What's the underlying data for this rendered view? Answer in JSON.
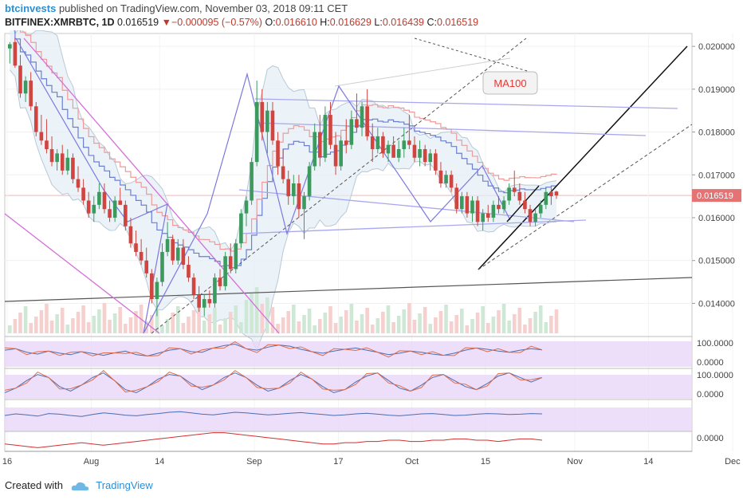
{
  "header": {
    "author": "btcinvests",
    "published_text": "published on TradingView.com, November 03, 2018 09:11 CET"
  },
  "quote": {
    "symbol": "BITFINEX:XMRBTC, 1D",
    "last": "0.016519",
    "down_arrow": "▼",
    "change": "−0.000095 (−0.57%)",
    "o_label": "O:",
    "o_value": "0.016610",
    "h_label": "H:",
    "h_value": "0.016629",
    "l_label": "L:",
    "l_value": "0.016439",
    "c_label": "C:",
    "c_value": "0.016519"
  },
  "footer": {
    "created_with": "Created with",
    "brand": "TradingView"
  },
  "colors": {
    "up": "#3c9a5f",
    "down": "#d0453f",
    "accent": "#2a8fd6",
    "ma100": "#e53935",
    "price_tag": "#e57373"
  },
  "chart_data": {
    "type": "candlestick",
    "title": "BITFINEX:XMRBTC, 1D",
    "ylim": [
      0.0133,
      0.0203
    ],
    "y_ticks": [
      "0.020000",
      "0.019000",
      "0.018000",
      "0.017000",
      "0.016000",
      "0.015000",
      "0.014000"
    ],
    "y_tick_values": [
      0.02,
      0.019,
      0.018,
      0.017,
      0.016,
      0.015,
      0.014
    ],
    "last_price_label": "0.016519",
    "last_price_value": 0.016519,
    "x_ticks": [
      "16",
      "Aug",
      "14",
      "Sep",
      "17",
      "Oct",
      "15",
      "Nov",
      "14",
      "Dec"
    ],
    "x_tick_days": [
      0,
      16,
      29,
      47,
      63,
      77,
      91,
      108,
      122,
      138
    ],
    "total_days": 141,
    "annotation": "MA100",
    "candles": [
      [
        0.01995,
        0.0201,
        0.0196,
        0.02005
      ],
      [
        0.0201,
        0.0202,
        0.0195,
        0.01955
      ],
      [
        0.01955,
        0.0198,
        0.0188,
        0.0189
      ],
      [
        0.0189,
        0.0193,
        0.0187,
        0.0192
      ],
      [
        0.0192,
        0.0194,
        0.0185,
        0.0186
      ],
      [
        0.0186,
        0.0187,
        0.0179,
        0.018
      ],
      [
        0.018,
        0.0184,
        0.0177,
        0.0178
      ],
      [
        0.0178,
        0.0183,
        0.0175,
        0.0176
      ],
      [
        0.0176,
        0.0179,
        0.0172,
        0.0173
      ],
      [
        0.0173,
        0.0176,
        0.0171,
        0.0175
      ],
      [
        0.0175,
        0.0177,
        0.017,
        0.0171
      ],
      [
        0.0171,
        0.0176,
        0.017,
        0.0174
      ],
      [
        0.0174,
        0.0175,
        0.0168,
        0.0169
      ],
      [
        0.0169,
        0.0172,
        0.0166,
        0.0167
      ],
      [
        0.0167,
        0.0169,
        0.0163,
        0.0164
      ],
      [
        0.0164,
        0.0166,
        0.016,
        0.0161
      ],
      [
        0.0161,
        0.0165,
        0.0159,
        0.0163
      ],
      [
        0.0163,
        0.0168,
        0.0162,
        0.0166
      ],
      [
        0.0166,
        0.0168,
        0.0161,
        0.0162
      ],
      [
        0.0162,
        0.0164,
        0.0159,
        0.016
      ],
      [
        0.016,
        0.0165,
        0.0159,
        0.0164
      ],
      [
        0.0164,
        0.0167,
        0.0163,
        0.0163
      ],
      [
        0.0163,
        0.0164,
        0.0157,
        0.0158
      ],
      [
        0.0158,
        0.016,
        0.0153,
        0.0154
      ],
      [
        0.0154,
        0.0157,
        0.0151,
        0.0152
      ],
      [
        0.0152,
        0.0155,
        0.0149,
        0.015
      ],
      [
        0.015,
        0.0153,
        0.0146,
        0.0147
      ],
      [
        0.0147,
        0.0148,
        0.014,
        0.0141
      ],
      [
        0.0141,
        0.0146,
        0.0137,
        0.0145
      ],
      [
        0.0145,
        0.0154,
        0.0144,
        0.0152
      ],
      [
        0.0152,
        0.0159,
        0.0151,
        0.0155
      ],
      [
        0.0155,
        0.0156,
        0.0149,
        0.015
      ],
      [
        0.015,
        0.0155,
        0.0149,
        0.0153
      ],
      [
        0.0153,
        0.0155,
        0.0148,
        0.0149
      ],
      [
        0.0149,
        0.0151,
        0.0145,
        0.0146
      ],
      [
        0.0146,
        0.0147,
        0.0141,
        0.0142
      ],
      [
        0.0142,
        0.0144,
        0.0138,
        0.0139
      ],
      [
        0.0139,
        0.0142,
        0.0137,
        0.0141
      ],
      [
        0.0141,
        0.0143,
        0.0139,
        0.014
      ],
      [
        0.014,
        0.0147,
        0.0139,
        0.0146
      ],
      [
        0.0146,
        0.0148,
        0.0143,
        0.0144
      ],
      [
        0.0144,
        0.0152,
        0.0143,
        0.0151
      ],
      [
        0.0151,
        0.0154,
        0.0147,
        0.0148
      ],
      [
        0.0148,
        0.0155,
        0.0147,
        0.0154
      ],
      [
        0.0154,
        0.0162,
        0.0153,
        0.0161
      ],
      [
        0.0161,
        0.0165,
        0.0158,
        0.0164
      ],
      [
        0.0164,
        0.0174,
        0.0163,
        0.0173
      ],
      [
        0.0173,
        0.0192,
        0.0172,
        0.0187
      ],
      [
        0.0187,
        0.019,
        0.0178,
        0.018
      ],
      [
        0.018,
        0.0187,
        0.0175,
        0.0185
      ],
      [
        0.0185,
        0.0187,
        0.0177,
        0.0178
      ],
      [
        0.0178,
        0.018,
        0.017,
        0.0172
      ],
      [
        0.0172,
        0.0176,
        0.0168,
        0.0169
      ],
      [
        0.0169,
        0.0171,
        0.0163,
        0.0165
      ],
      [
        0.0165,
        0.017,
        0.0163,
        0.0168
      ],
      [
        0.0168,
        0.017,
        0.016,
        0.0162
      ],
      [
        0.0162,
        0.0166,
        0.0155,
        0.0165
      ],
      [
        0.0165,
        0.0173,
        0.0164,
        0.0172
      ],
      [
        0.0172,
        0.0182,
        0.0171,
        0.018
      ],
      [
        0.018,
        0.0184,
        0.0172,
        0.0174
      ],
      [
        0.0174,
        0.0186,
        0.0173,
        0.0184
      ],
      [
        0.0184,
        0.0187,
        0.0176,
        0.0177
      ],
      [
        0.0177,
        0.018,
        0.017,
        0.0172
      ],
      [
        0.0172,
        0.0179,
        0.0171,
        0.0178
      ],
      [
        0.0178,
        0.0183,
        0.0175,
        0.0177
      ],
      [
        0.0177,
        0.0185,
        0.0176,
        0.0183
      ],
      [
        0.0183,
        0.0189,
        0.018,
        0.0181
      ],
      [
        0.0181,
        0.0187,
        0.0179,
        0.0186
      ],
      [
        0.0186,
        0.019,
        0.0178,
        0.0179
      ],
      [
        0.0179,
        0.0182,
        0.0173,
        0.0176
      ],
      [
        0.0176,
        0.0181,
        0.0175,
        0.0179
      ],
      [
        0.0179,
        0.018,
        0.0174,
        0.0175
      ],
      [
        0.0175,
        0.0178,
        0.0173,
        0.0177
      ],
      [
        0.0177,
        0.0179,
        0.0174,
        0.0174
      ],
      [
        0.0174,
        0.0178,
        0.0173,
        0.0176
      ],
      [
        0.0176,
        0.0181,
        0.0174,
        0.0178
      ],
      [
        0.0178,
        0.0184,
        0.0176,
        0.0177
      ],
      [
        0.0177,
        0.0179,
        0.0173,
        0.0174
      ],
      [
        0.0174,
        0.0178,
        0.0172,
        0.0176
      ],
      [
        0.0176,
        0.0177,
        0.0172,
        0.0173
      ],
      [
        0.0173,
        0.0176,
        0.0171,
        0.0175
      ],
      [
        0.0175,
        0.0176,
        0.017,
        0.0171
      ],
      [
        0.0171,
        0.0173,
        0.0167,
        0.0168
      ],
      [
        0.0168,
        0.0171,
        0.0167,
        0.017
      ],
      [
        0.017,
        0.0171,
        0.0166,
        0.0167
      ],
      [
        0.0167,
        0.0168,
        0.0161,
        0.0162
      ],
      [
        0.0162,
        0.0166,
        0.0161,
        0.0165
      ],
      [
        0.0165,
        0.0166,
        0.016,
        0.0161
      ],
      [
        0.0161,
        0.0165,
        0.0159,
        0.0164
      ],
      [
        0.0164,
        0.0165,
        0.0158,
        0.0159
      ],
      [
        0.0159,
        0.0162,
        0.0157,
        0.0161
      ],
      [
        0.0161,
        0.0163,
        0.0159,
        0.016
      ],
      [
        0.016,
        0.0164,
        0.0159,
        0.0163
      ],
      [
        0.0163,
        0.0165,
        0.0161,
        0.0162
      ],
      [
        0.0162,
        0.0165,
        0.0161,
        0.0164
      ],
      [
        0.0164,
        0.0168,
        0.0163,
        0.0167
      ],
      [
        0.0167,
        0.0171,
        0.0165,
        0.0166
      ],
      [
        0.0166,
        0.0168,
        0.0163,
        0.0164
      ],
      [
        0.0164,
        0.0166,
        0.0161,
        0.0162
      ],
      [
        0.0162,
        0.0163,
        0.0158,
        0.0159
      ],
      [
        0.0159,
        0.0162,
        0.0158,
        0.0161
      ],
      [
        0.0161,
        0.0164,
        0.016,
        0.0163
      ],
      [
        0.0163,
        0.0167,
        0.0162,
        0.0166
      ],
      [
        0.0166,
        0.0167,
        0.0163,
        0.0165
      ],
      [
        0.01661,
        0.016629,
        0.016439,
        0.016519
      ]
    ],
    "indicators": [
      {
        "name": "RSI pane",
        "values": [
          55,
          60,
          48,
          42,
          52,
          45,
          40,
          50,
          44,
          38,
          46,
          52,
          40,
          36,
          45,
          55,
          60,
          50,
          48,
          62,
          70,
          75,
          60,
          55,
          65,
          72,
          68,
          58,
          50,
          45,
          52,
          58,
          62,
          55,
          48,
          40,
          45,
          52,
          48,
          42,
          38,
          45,
          55,
          62,
          58,
          52,
          48,
          55,
          60,
          56
        ]
      },
      {
        "name": "Stochastic pane",
        "values": [
          20,
          35,
          60,
          80,
          70,
          40,
          25,
          45,
          70,
          85,
          60,
          30,
          20,
          40,
          65,
          80,
          75,
          50,
          30,
          45,
          70,
          85,
          70,
          45,
          25,
          35,
          60,
          80,
          65,
          40,
          20,
          30,
          55,
          75,
          85,
          60,
          35,
          25,
          45,
          70,
          80,
          60,
          40,
          30,
          50,
          75,
          85,
          70,
          55,
          70
        ]
      },
      {
        "name": "Momentum pane",
        "values": [
          50,
          55,
          52,
          48,
          56,
          54,
          50,
          47,
          53,
          58,
          55,
          51,
          49,
          53,
          56,
          60,
          62,
          58,
          54,
          52,
          56,
          60,
          58,
          55,
          52,
          54,
          57,
          59,
          56,
          53,
          50,
          52,
          55,
          57,
          54,
          51,
          49,
          52,
          55,
          56,
          53,
          50,
          51,
          54,
          56,
          55,
          53,
          54,
          56,
          55
        ]
      },
      {
        "name": "MACD pane",
        "values": [
          -3,
          -4,
          -5,
          -6,
          -5,
          -4,
          -3,
          -2,
          -3,
          -4,
          -3,
          -2,
          -1,
          0,
          1,
          2,
          3,
          4,
          5,
          6,
          6,
          5,
          4,
          3,
          2,
          1,
          0,
          -1,
          -2,
          -3,
          -3,
          -2,
          -2,
          -1,
          -1,
          0,
          0,
          -1,
          -1,
          0,
          0,
          1,
          1,
          0,
          0,
          -1,
          0,
          1,
          1,
          0
        ]
      }
    ]
  }
}
